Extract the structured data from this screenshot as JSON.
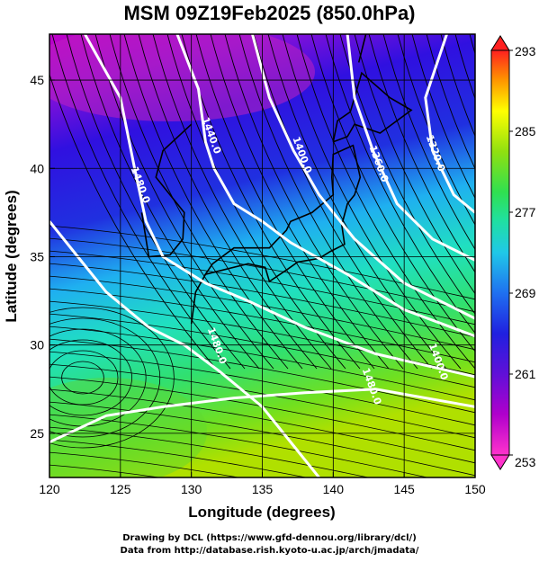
{
  "title": "MSM 09Z19Feb2025 (850.0hPa)",
  "x_axis": {
    "title": "Longitude (degrees)",
    "ticks": [
      120,
      125,
      130,
      135,
      140,
      145,
      150
    ],
    "range": [
      120,
      150
    ]
  },
  "y_axis": {
    "title": "Latitude  (degrees)",
    "ticks": [
      25,
      30,
      35,
      40,
      45
    ],
    "range": [
      22.5,
      47.6
    ]
  },
  "colorbar": {
    "ticks": [
      253,
      261,
      269,
      277,
      285,
      293
    ],
    "range": [
      253,
      293
    ],
    "colors": [
      "#ff33cc",
      "#cc00cc",
      "#8000cc",
      "#2a1adc",
      "#1f4fe0",
      "#1f8ff0",
      "#20c8e0",
      "#20e0a0",
      "#30e060",
      "#70e020",
      "#b0e000",
      "#ffff00",
      "#ffc000",
      "#ff8000",
      "#ff2020"
    ]
  },
  "contours": [
    {
      "label": "1480.0",
      "lon": 126.2,
      "lat": 39.0
    },
    {
      "label": "1440.0",
      "lon": 131.2,
      "lat": 41.8
    },
    {
      "label": "1400.0",
      "lon": 137.6,
      "lat": 40.7
    },
    {
      "label": "1360.0",
      "lon": 143.0,
      "lat": 40.2
    },
    {
      "label": "1320.0",
      "lon": 147.0,
      "lat": 40.8
    },
    {
      "label": "1480.0",
      "lon": 131.6,
      "lat": 29.9
    },
    {
      "label": "1400.0",
      "lon": 147.2,
      "lat": 29.0
    },
    {
      "label": "1480.0",
      "lon": 142.5,
      "lat": 27.6
    }
  ],
  "credits": [
    "Drawing by DCL (https://www.gfd-dennou.org/library/dcl/)",
    "Data from http://database.rish.kyoto-u.ac.jp/arch/jmadata/"
  ]
}
